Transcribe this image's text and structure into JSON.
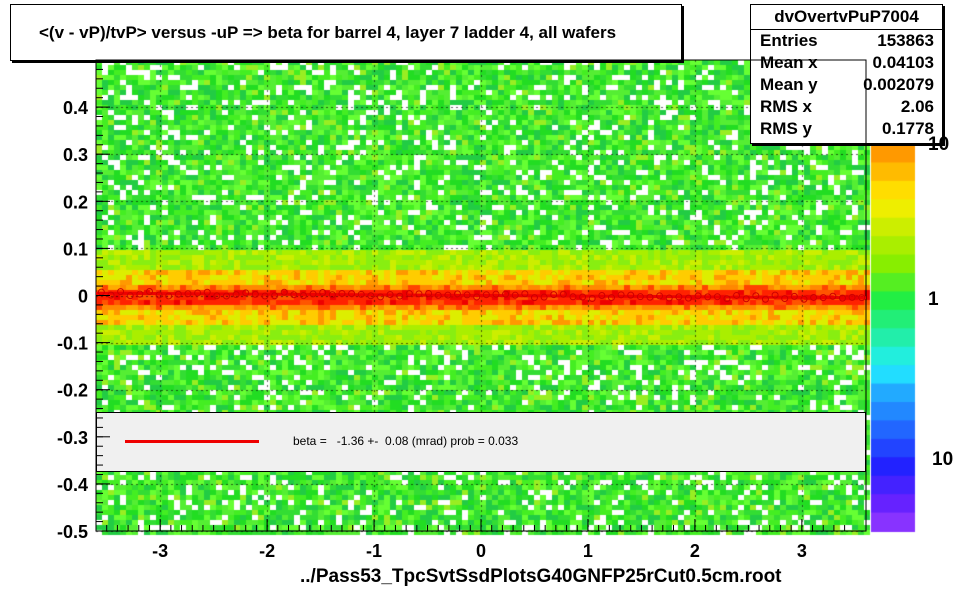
{
  "title": "<(v - vP)/tvP> versus  -uP => beta for barrel 4, layer 7 ladder 4, all wafers",
  "stats": {
    "name": "dvOvertvPuP7004",
    "rows": [
      {
        "label": "Entries",
        "value": "153863"
      },
      {
        "label": "Mean x",
        "value": "0.04103"
      },
      {
        "label": "Mean y",
        "value": "0.002079"
      },
      {
        "label": "RMS x",
        "value": "2.06"
      },
      {
        "label": "RMS y",
        "value": "0.1778"
      }
    ]
  },
  "legend": {
    "text": "beta =   -1.36 +-  0.08 (mrad) prob = 0.033",
    "line_color": "#ee0000"
  },
  "xlabel": "../Pass53_TpcSvtSsdPlotsG40GNFP25rCut0.5cm.root",
  "colors": {
    "background_low": "#33dd33",
    "band_mid": "#ffcc00",
    "band_core": "#ff2200",
    "profile_marker": "#cc0000"
  },
  "chart_data": {
    "type": "heatmap",
    "x_range": [
      -3.6,
      3.6
    ],
    "y_range": [
      -0.5,
      0.5
    ],
    "x_ticks": [
      "-3",
      "-2",
      "-1",
      "0",
      "1",
      "2",
      "3"
    ],
    "y_ticks": [
      "-0.5",
      "-0.4",
      "-0.3",
      "-0.2",
      "-0.1",
      "0",
      "0.1",
      "0.2",
      "0.3",
      "0.4"
    ],
    "z_scale": "log",
    "z_labels": [
      "10",
      "1",
      "10"
    ],
    "fit": {
      "slope_mrad": -1.36,
      "slope_error_mrad": 0.08,
      "prob": 0.033
    },
    "profile": {
      "x": [
        -3.4,
        -3.0,
        -2.6,
        -2.2,
        -1.8,
        -1.4,
        -1.0,
        -0.6,
        -0.2,
        0.2,
        0.6,
        1.0,
        1.4,
        1.8,
        2.2,
        2.6,
        3.0,
        3.4
      ],
      "y": [
        0.004,
        0.003,
        0.003,
        0.002,
        0.002,
        0.002,
        0.002,
        0.001,
        0.001,
        0.001,
        0.0,
        0.0,
        -0.001,
        -0.001,
        -0.002,
        -0.003,
        -0.003,
        -0.004
      ]
    }
  }
}
